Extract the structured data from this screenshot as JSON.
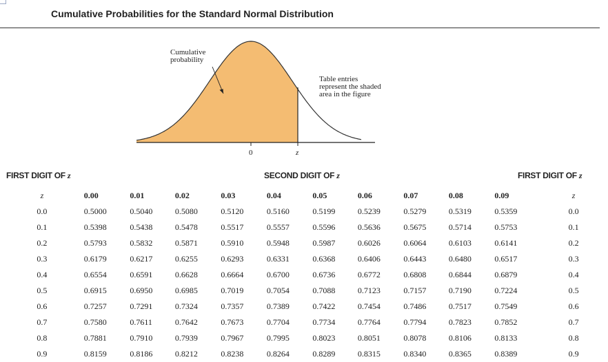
{
  "title": "Cumulative Probabilities for the Standard Normal Distribution",
  "figure": {
    "label_cumulative": "Cumulative\nprobability",
    "label_note": "Table entries\nrepresent the shaded\narea in the figure",
    "label_zero": "0",
    "label_z": "z",
    "colors": {
      "shade": "#f4bc72",
      "curve": "#333333"
    }
  },
  "headers": {
    "first_digit_left": "FIRST DIGIT OF ",
    "second_digit": "SECOND DIGIT OF ",
    "first_digit_right": "FIRST DIGIT OF ",
    "z_var": "z"
  },
  "table": {
    "z_header": "z",
    "columns": [
      "0.00",
      "0.01",
      "0.02",
      "0.03",
      "0.04",
      "0.05",
      "0.06",
      "0.07",
      "0.08",
      "0.09"
    ],
    "rows": [
      {
        "z": "0.0",
        "values": [
          "0.5000",
          "0.5040",
          "0.5080",
          "0.5120",
          "0.5160",
          "0.5199",
          "0.5239",
          "0.5279",
          "0.5319",
          "0.5359"
        ]
      },
      {
        "z": "0.1",
        "values": [
          "0.5398",
          "0.5438",
          "0.5478",
          "0.5517",
          "0.5557",
          "0.5596",
          "0.5636",
          "0.5675",
          "0.5714",
          "0.5753"
        ]
      },
      {
        "z": "0.2",
        "values": [
          "0.5793",
          "0.5832",
          "0.5871",
          "0.5910",
          "0.5948",
          "0.5987",
          "0.6026",
          "0.6064",
          "0.6103",
          "0.6141"
        ]
      },
      {
        "z": "0.3",
        "values": [
          "0.6179",
          "0.6217",
          "0.6255",
          "0.6293",
          "0.6331",
          "0.6368",
          "0.6406",
          "0.6443",
          "0.6480",
          "0.6517"
        ]
      },
      {
        "z": "0.4",
        "values": [
          "0.6554",
          "0.6591",
          "0.6628",
          "0.6664",
          "0.6700",
          "0.6736",
          "0.6772",
          "0.6808",
          "0.6844",
          "0.6879"
        ]
      },
      {
        "z": "0.5",
        "values": [
          "0.6915",
          "0.6950",
          "0.6985",
          "0.7019",
          "0.7054",
          "0.7088",
          "0.7123",
          "0.7157",
          "0.7190",
          "0.7224"
        ]
      },
      {
        "z": "0.6",
        "values": [
          "0.7257",
          "0.7291",
          "0.7324",
          "0.7357",
          "0.7389",
          "0.7422",
          "0.7454",
          "0.7486",
          "0.7517",
          "0.7549"
        ]
      },
      {
        "z": "0.7",
        "values": [
          "0.7580",
          "0.7611",
          "0.7642",
          "0.7673",
          "0.7704",
          "0.7734",
          "0.7764",
          "0.7794",
          "0.7823",
          "0.7852"
        ]
      },
      {
        "z": "0.8",
        "values": [
          "0.7881",
          "0.7910",
          "0.7939",
          "0.7967",
          "0.7995",
          "0.8023",
          "0.8051",
          "0.8078",
          "0.8106",
          "0.8133"
        ]
      },
      {
        "z": "0.9",
        "values": [
          "0.8159",
          "0.8186",
          "0.8212",
          "0.8238",
          "0.8264",
          "0.8289",
          "0.8315",
          "0.8340",
          "0.8365",
          "0.8389"
        ]
      }
    ]
  }
}
